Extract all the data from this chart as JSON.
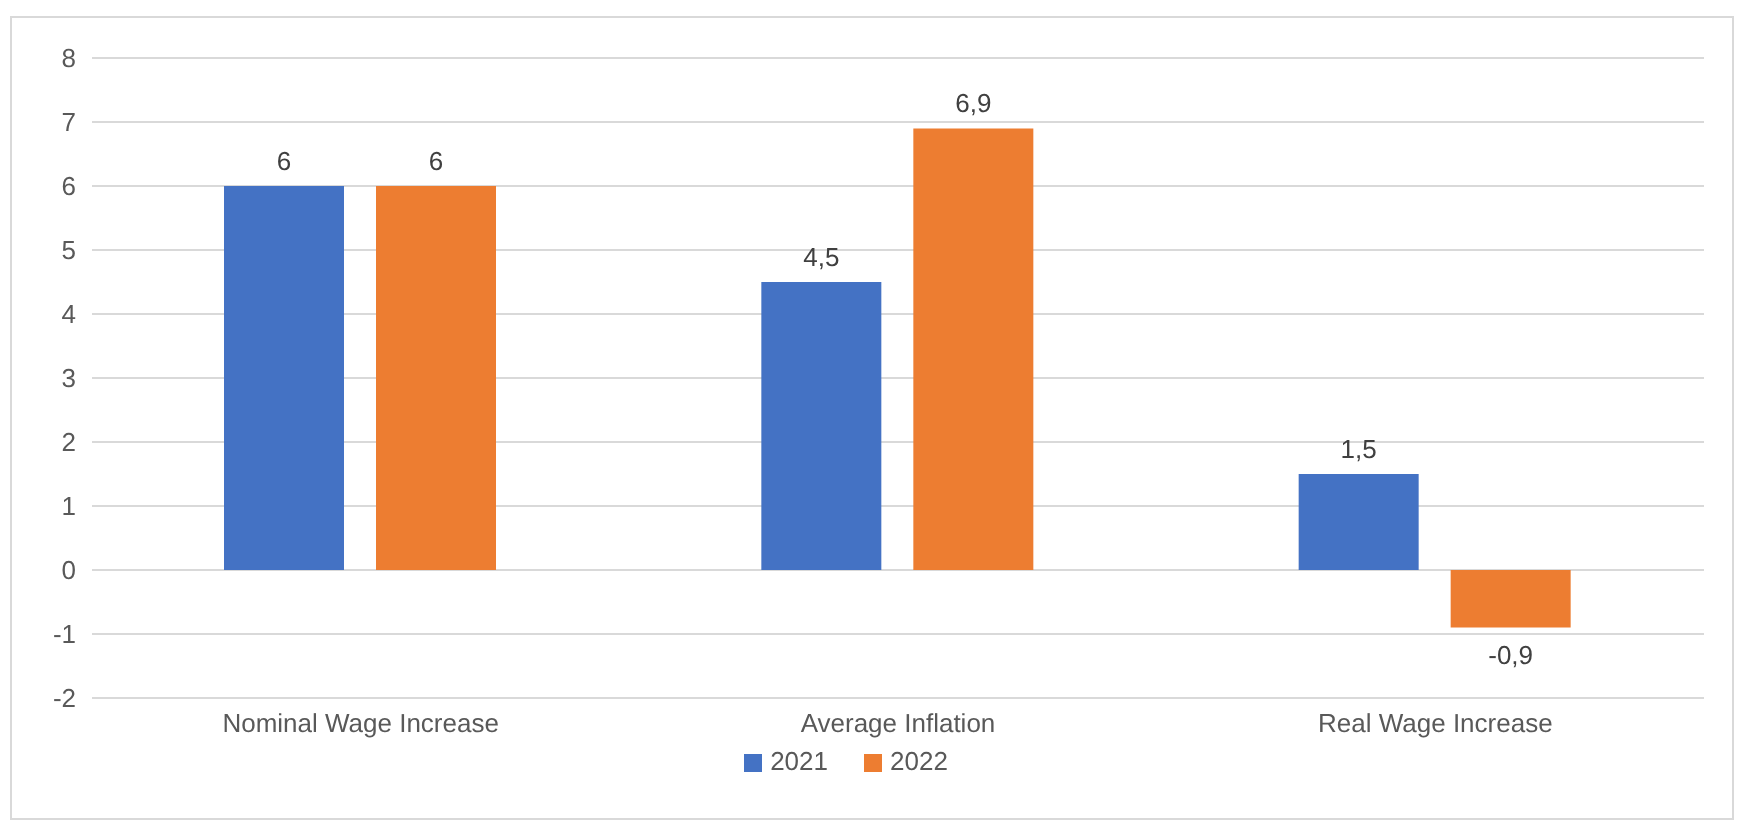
{
  "chart_data": {
    "type": "bar",
    "categories": [
      "Nominal Wage Increase",
      "Average Inflation",
      "Real Wage Increase"
    ],
    "series": [
      {
        "name": "2021",
        "color": "#4472c4",
        "values": [
          6,
          4.5,
          1.5
        ],
        "value_labels": [
          "6",
          "4,5",
          "1,5"
        ]
      },
      {
        "name": "2022",
        "color": "#ed7d31",
        "values": [
          6,
          6.9,
          -0.9
        ],
        "value_labels": [
          "6",
          "6,9",
          "-0,9"
        ]
      }
    ],
    "ylim": [
      -2,
      8
    ],
    "yticks": [
      -2,
      -1,
      0,
      1,
      2,
      3,
      4,
      5,
      6,
      7,
      8
    ],
    "grid": "y",
    "legend": "bottom"
  }
}
